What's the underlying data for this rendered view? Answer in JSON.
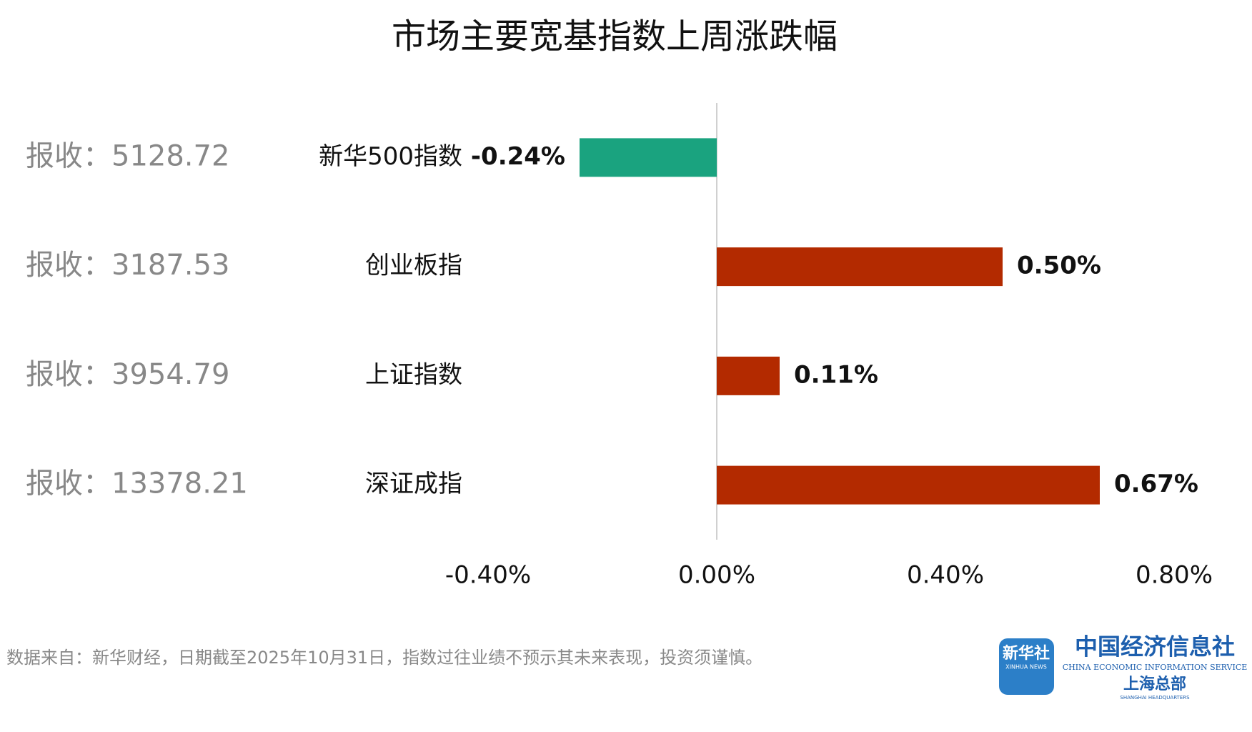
{
  "chart_data": {
    "type": "bar",
    "orientation": "horizontal",
    "title": "市场主要宽基指数上周涨跌幅",
    "categories": [
      "新华500指数",
      "创业板指",
      "上证指数",
      "深证成指"
    ],
    "values": [
      -0.24,
      0.5,
      0.11,
      0.67
    ],
    "value_labels": [
      "-0.24%",
      "0.50%",
      "0.11%",
      "0.67%"
    ],
    "colors": [
      "#1aa37f",
      "#b32a00",
      "#b32a00",
      "#b32a00"
    ],
    "row_notes": [
      "报收：5128.72",
      "报收：3187.53",
      "报收：3954.79",
      "报收：13378.21"
    ],
    "xlim": [
      -0.4,
      0.8
    ],
    "xticks": [
      {
        "value": -0.4,
        "label": "-0.40%"
      },
      {
        "value": 0,
        "label": "0.00%"
      },
      {
        "value": 0.4,
        "label": "0.40%"
      },
      {
        "value": 0.8,
        "label": "0.80%"
      }
    ],
    "footnote": "数据来自：新华财经，日期截至2025年10月31日，指数过往业绩不预示其未来表现，投资须谨慎。"
  },
  "logo": {
    "badge": "新华社",
    "badge_sub": "XINHUA NEWS",
    "name": "中国经济信息社",
    "name_en": "CHINA ECONOMIC INFORMATION SERVICE",
    "branch": "上海总部",
    "branch_en": "SHANGHAI HEADQUARTERS"
  }
}
